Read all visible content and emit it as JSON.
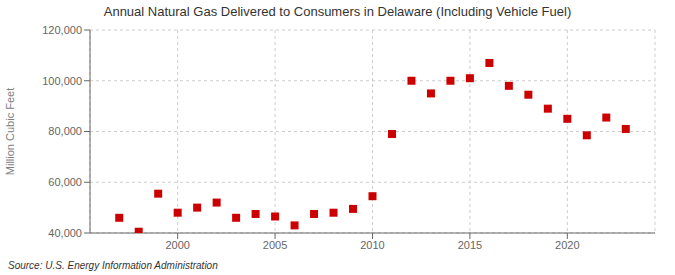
{
  "chart_data": {
    "type": "scatter",
    "title": "Annual Natural Gas Delivered to Consumers in Delaware (Including Vehicle Fuel)",
    "ylabel": "Million Cubic Feet",
    "annotations": [
      "Source: U.S. Energy Information Administration"
    ],
    "x": [
      1997,
      1998,
      1999,
      2000,
      2001,
      2002,
      2003,
      2004,
      2005,
      2006,
      2007,
      2008,
      2009,
      2010,
      2011,
      2012,
      2013,
      2014,
      2015,
      2016,
      2017,
      2018,
      2019,
      2020,
      2021,
      2022,
      2023
    ],
    "values": [
      46000,
      40500,
      55500,
      48000,
      50000,
      52000,
      46000,
      47500,
      46500,
      43000,
      47500,
      48000,
      49500,
      54500,
      79000,
      100000,
      95000,
      100000,
      101000,
      107000,
      98000,
      94500,
      89000,
      85000,
      78500,
      85500,
      81000
    ],
    "color": "#cc0000",
    "marker": "square",
    "xlim": [
      1995.5,
      2024.5
    ],
    "ylim": [
      40000,
      120000
    ],
    "xticks": [
      2000,
      2005,
      2010,
      2015,
      2020
    ],
    "yticks": [
      {
        "value": 40000,
        "label": "40,000"
      },
      {
        "value": 60000,
        "label": "60,000"
      },
      {
        "value": 80000,
        "label": "80,000"
      },
      {
        "value": 100000,
        "label": "100,000"
      },
      {
        "value": 120000,
        "label": "120,000"
      }
    ],
    "grid": true
  }
}
